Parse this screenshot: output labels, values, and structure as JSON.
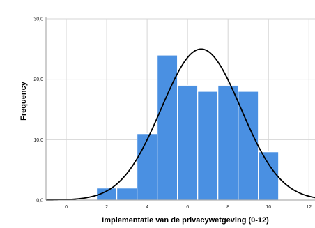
{
  "chart_data": {
    "type": "bar",
    "subtype": "histogram-with-normal-curve",
    "title": "",
    "xlabel": "Implementatie van de privacywetgeving (0-12)",
    "ylabel": "Frequency",
    "xlim": [
      -1,
      12.3
    ],
    "ylim": [
      0,
      30
    ],
    "x_ticks": [
      0,
      2,
      4,
      6,
      8,
      10,
      12
    ],
    "x_tick_labels": [
      "0",
      "2",
      "4",
      "6",
      "8",
      "10",
      "12"
    ],
    "y_ticks": [
      0,
      10,
      20,
      30
    ],
    "y_tick_labels": [
      "0,0",
      "10,0",
      "20,0",
      "30,0"
    ],
    "bins": [
      {
        "start": 1.5,
        "end": 2.5,
        "value": 2
      },
      {
        "start": 2.5,
        "end": 3.5,
        "value": 2
      },
      {
        "start": 3.5,
        "end": 4.5,
        "value": 11
      },
      {
        "start": 4.5,
        "end": 5.5,
        "value": 24
      },
      {
        "start": 5.5,
        "end": 6.5,
        "value": 19
      },
      {
        "start": 6.5,
        "end": 7.5,
        "value": 18
      },
      {
        "start": 7.5,
        "end": 8.5,
        "value": 19
      },
      {
        "start": 8.5,
        "end": 9.5,
        "value": 18
      },
      {
        "start": 9.5,
        "end": 10.5,
        "value": 8
      }
    ],
    "normal_curve": {
      "mean": 6.67,
      "sd": 1.97,
      "peak": 25
    },
    "grid": true,
    "colors": {
      "bar_fill": "#4a90e2",
      "bar_edge": "#ffffff",
      "curve": "#000000",
      "grid": "#d6d6d6",
      "frame": "#9e9e9e"
    }
  }
}
